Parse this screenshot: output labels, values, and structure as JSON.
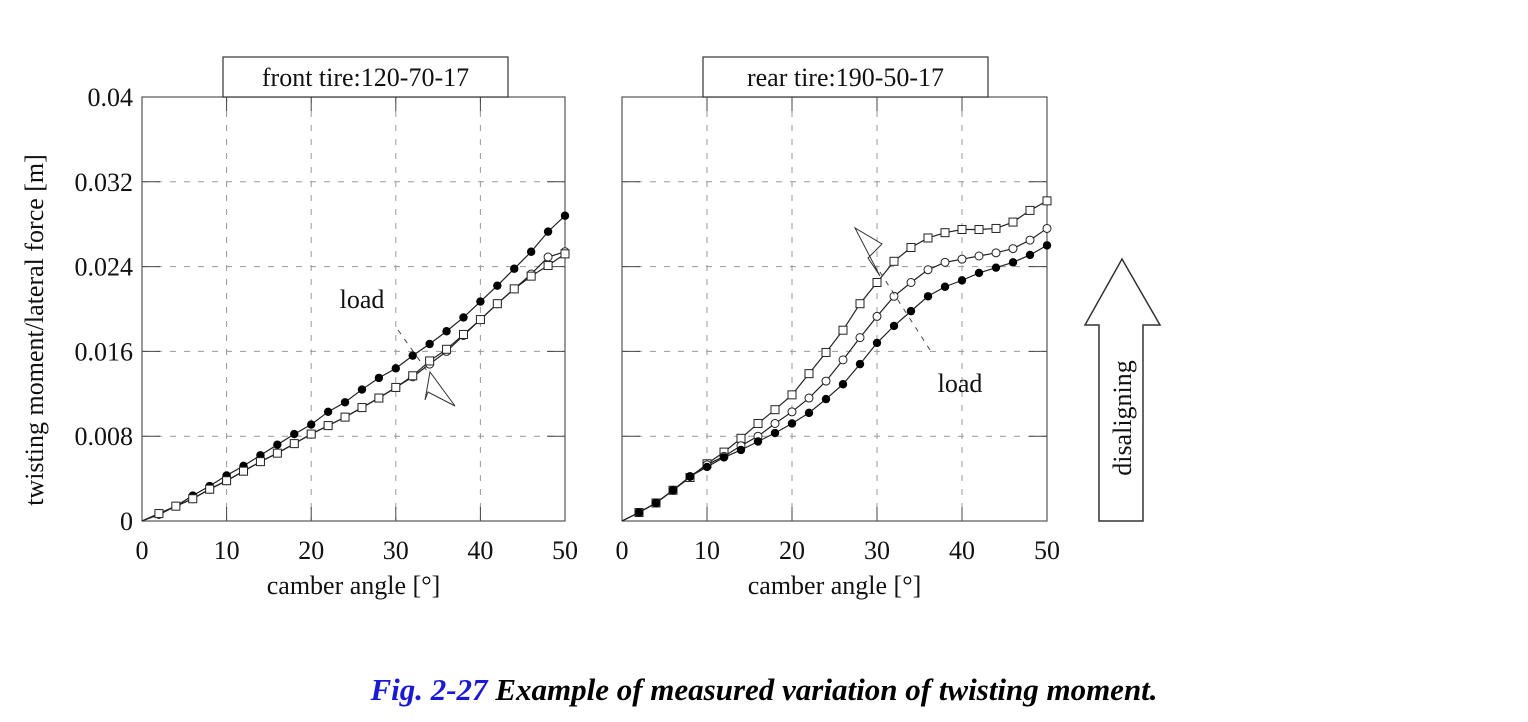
{
  "chart_data": [
    {
      "type": "line",
      "title": "front tire:120-70-17",
      "xlabel": "camber angle [°]",
      "ylabel": "twisting moment/lateral force [m]",
      "xlim": [
        0,
        50
      ],
      "ylim": [
        0,
        0.04
      ],
      "xticks": [
        "0",
        "10",
        "20",
        "30",
        "40",
        "50"
      ],
      "yticks": [
        "0",
        "0.008",
        "0.016",
        "0.024",
        "0.032",
        "0.04"
      ],
      "grid": true,
      "annotation": "load",
      "x": [
        2,
        4,
        6,
        8,
        10,
        12,
        14,
        16,
        18,
        20,
        22,
        24,
        26,
        28,
        30,
        32,
        34,
        36,
        38,
        40,
        42,
        44,
        46,
        48,
        50
      ],
      "series": [
        {
          "name": "filled circle",
          "marker": "filled-circle",
          "values": [
            0.0006,
            0.0014,
            0.0024,
            0.0033,
            0.0043,
            0.0052,
            0.0062,
            0.0072,
            0.0082,
            0.0091,
            0.0103,
            0.0112,
            0.0124,
            0.0135,
            0.0144,
            0.0156,
            0.0167,
            0.0179,
            0.0192,
            0.0207,
            0.0222,
            0.0238,
            0.0254,
            0.0273,
            0.0288
          ]
        },
        {
          "name": "open circle",
          "marker": "open-circle",
          "values": [
            0.0007,
            0.0014,
            0.0021,
            0.003,
            0.0038,
            0.0047,
            0.0056,
            0.0064,
            0.0073,
            0.0082,
            0.009,
            0.0098,
            0.0107,
            0.0116,
            0.0126,
            0.0136,
            0.0148,
            0.016,
            0.0175,
            0.019,
            0.0205,
            0.0219,
            0.0233,
            0.0249,
            0.0254
          ]
        },
        {
          "name": "open square",
          "marker": "open-square",
          "values": [
            0.0007,
            0.0014,
            0.0021,
            0.003,
            0.0038,
            0.0047,
            0.0056,
            0.0064,
            0.0073,
            0.0082,
            0.009,
            0.0098,
            0.0107,
            0.0116,
            0.0126,
            0.0137,
            0.0151,
            0.0162,
            0.0176,
            0.019,
            0.0205,
            0.0219,
            0.0231,
            0.0241,
            0.0252
          ]
        }
      ]
    },
    {
      "type": "line",
      "title": "rear tire:190-50-17",
      "xlabel": "camber angle [°]",
      "xlim": [
        0,
        50
      ],
      "ylim": [
        0,
        0.04
      ],
      "xticks": [
        "0",
        "10",
        "20",
        "30",
        "40",
        "50"
      ],
      "grid": true,
      "annotation": "load",
      "x": [
        2,
        4,
        6,
        8,
        10,
        12,
        14,
        16,
        18,
        20,
        22,
        24,
        26,
        28,
        30,
        32,
        34,
        36,
        38,
        40,
        42,
        44,
        46,
        48,
        50
      ],
      "series": [
        {
          "name": "open square",
          "marker": "open-square",
          "values": [
            0.0008,
            0.0017,
            0.0029,
            0.0041,
            0.0054,
            0.0065,
            0.0078,
            0.0092,
            0.0105,
            0.0119,
            0.0139,
            0.0159,
            0.018,
            0.0205,
            0.0225,
            0.0245,
            0.0258,
            0.0267,
            0.0272,
            0.0275,
            0.0275,
            0.0276,
            0.0282,
            0.0293,
            0.0302
          ]
        },
        {
          "name": "open circle",
          "marker": "open-circle",
          "values": [
            0.0008,
            0.0017,
            0.0029,
            0.0042,
            0.0053,
            0.0061,
            0.0071,
            0.008,
            0.0092,
            0.0103,
            0.0116,
            0.0132,
            0.0152,
            0.0173,
            0.0193,
            0.0212,
            0.0225,
            0.0237,
            0.0244,
            0.0247,
            0.025,
            0.0253,
            0.0257,
            0.0265,
            0.0276
          ]
        },
        {
          "name": "filled circle",
          "marker": "filled-circle",
          "values": [
            0.0008,
            0.0017,
            0.0029,
            0.0042,
            0.0051,
            0.006,
            0.0067,
            0.0075,
            0.0083,
            0.0092,
            0.0102,
            0.0115,
            0.0129,
            0.0148,
            0.0168,
            0.0184,
            0.0198,
            0.0212,
            0.0221,
            0.0227,
            0.0234,
            0.0239,
            0.0244,
            0.0251,
            0.026
          ]
        }
      ]
    }
  ],
  "side_arrow": {
    "label": "disaligning"
  },
  "caption": {
    "figure_number": "Fig. 2-27",
    "text": "Example of measured variation of twisting moment."
  }
}
